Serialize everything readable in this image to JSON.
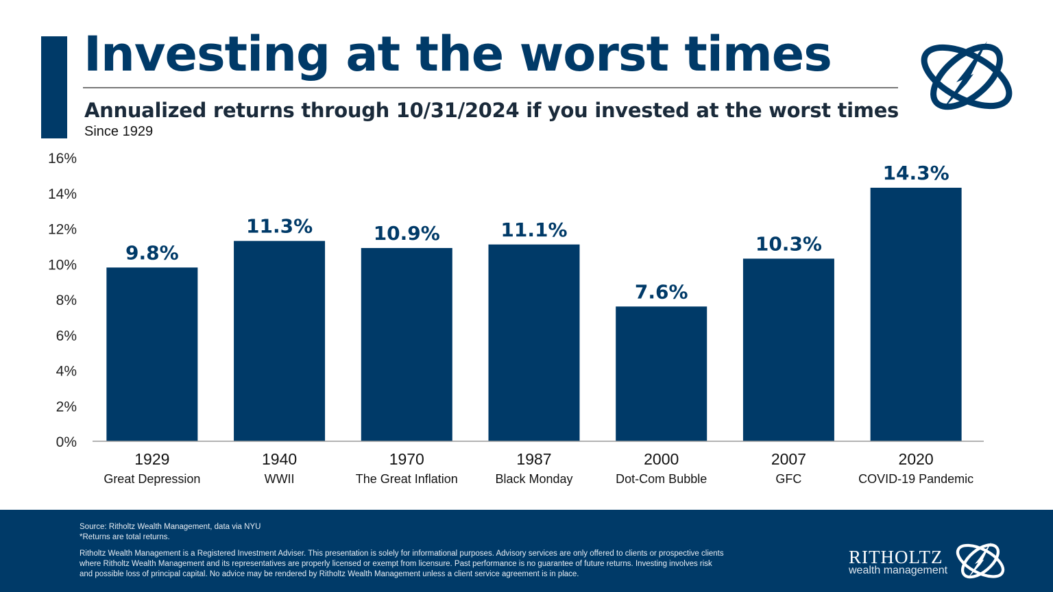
{
  "header": {
    "title": "Investing at the worst times",
    "subtitle": "Annualized returns through 10/31/2024 if you invested at the worst times",
    "since": "Since 1929"
  },
  "colors": {
    "navy": "#003a68",
    "axis": "#999999"
  },
  "chart_data": {
    "type": "bar",
    "categories": [
      "1929",
      "1940",
      "1970",
      "1987",
      "2000",
      "2007",
      "2020"
    ],
    "sublabels": [
      "Great Depression",
      "WWII",
      "The Great Inflation",
      "Black Monday",
      "Dot-Com Bubble",
      "GFC",
      "COVID-19 Pandemic"
    ],
    "values": [
      9.8,
      11.3,
      10.9,
      11.1,
      7.6,
      10.3,
      14.3
    ],
    "value_labels": [
      "9.8%",
      "11.3%",
      "10.9%",
      "11.1%",
      "7.6%",
      "10.3%",
      "14.3%"
    ],
    "ylim": [
      0,
      16
    ],
    "yticks": [
      "0%",
      "2%",
      "4%",
      "6%",
      "8%",
      "10%",
      "12%",
      "14%",
      "16%"
    ],
    "grid": false,
    "bar_color": "#003a68"
  },
  "footer": {
    "source": "Source: Ritholtz Wealth Management, data via NYU",
    "note": "*Returns are total returns.",
    "disclaimer": "Ritholtz Wealth Management is a Registered Investment Adviser. This presentation is solely for informational purposes. Advisory services are only offered to clients or prospective clients where Ritholtz Wealth Management and its representatives are properly licensed or exempt from licensure. Past performance is no guarantee of future returns. Investing involves risk and possible loss of principal capital. No advice may be rendered by Ritholtz Wealth Management unless a client service agreement is in place.",
    "brand_name": "RITHOLTZ",
    "brand_sub": "wealth management"
  }
}
